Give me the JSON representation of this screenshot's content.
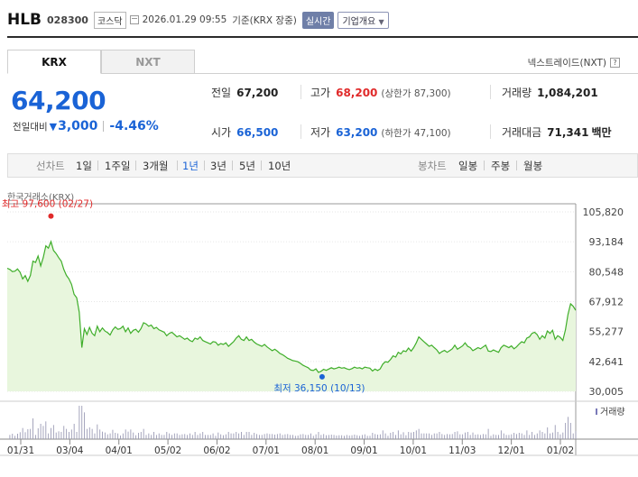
{
  "header": {
    "name": "HLB",
    "code": "028300",
    "market": "코스닥",
    "time": "2026.01.29 09:55",
    "basis": "기준(KRX 장중)",
    "realtime": "실시간",
    "corp_info": "기업개요"
  },
  "tabs": [
    {
      "label": "KRX"
    },
    {
      "label": "NXT"
    }
  ],
  "nxt_link": "넥스트레이드(NXT)",
  "help": "?",
  "price": {
    "current": "64,200",
    "change_label": "전일대비",
    "change": "3,000",
    "change_pct": "-4.46%"
  },
  "quote": {
    "prev_label": "전일",
    "prev": "67,200",
    "high_label": "고가",
    "high": "68,200",
    "upper": "(상한가 87,300)",
    "volume_label": "거래량",
    "volume": "1,084,201",
    "open_label": "시가",
    "open": "66,500",
    "low_label": "저가",
    "low": "63,200",
    "lower": "(하한가 47,100)",
    "amount_label": "거래대금",
    "amount": "71,341",
    "amount_unit": "백만"
  },
  "periods": {
    "line_label": "선차트",
    "items": [
      "1일",
      "1주일",
      "3개월",
      "1년",
      "3년",
      "5년",
      "10년"
    ],
    "selected": "1년",
    "candle_label": "봉차트",
    "candle_items": [
      "일봉",
      "주봉",
      "월봉"
    ]
  },
  "chart_data": {
    "type": "area",
    "source": "한국거래소(KRX)",
    "y_ticks": [
      "105,820",
      "93,184",
      "80,548",
      "67,912",
      "55,277",
      "42,641",
      "30,005"
    ],
    "ylim": [
      30005,
      105820
    ],
    "x_ticks": [
      "01/31",
      "03/04",
      "04/01",
      "05/02",
      "06/02",
      "07/01",
      "08/01",
      "09/01",
      "10/01",
      "11/03",
      "12/01",
      "01/02"
    ],
    "max_label": "최고 97,600 (02/27)",
    "min_label": "최저 36,150 (10/13)",
    "volume_label": "거래량",
    "colors": {
      "line": "#3fae2a",
      "fill": "#e8f6dd",
      "max": "#e02a2a",
      "min": "#1a63d6",
      "volume": "#9b9bb5"
    },
    "series": [
      {
        "values": [
          82000,
          81500,
          80600,
          80800,
          81700,
          80300,
          77500,
          78900,
          76500,
          79000,
          85000,
          84500,
          87200,
          83000,
          86500,
          91500,
          90500,
          93300,
          89500,
          88200,
          86500,
          85000,
          81500,
          79000,
          77500,
          75200,
          71000,
          69500,
          63500,
          48500,
          56500,
          54000,
          57000,
          54500,
          53500,
          57500,
          55200,
          56800,
          55500,
          54800,
          53800,
          56000,
          57200,
          56200,
          56500,
          57500,
          55200,
          56800,
          54500,
          55800,
          56200,
          55000,
          56500,
          59000,
          58500,
          57500,
          58000,
          56500,
          57000,
          56000,
          55500,
          55000,
          53500,
          54500,
          55000,
          54000,
          53000,
          53500,
          52800,
          52000,
          52500,
          51500,
          51000,
          52500,
          52000,
          53000,
          51500,
          51000,
          50500,
          50000,
          51000,
          50800,
          49500,
          50200,
          49800,
          50500,
          49000,
          50000,
          51000,
          52500,
          53500,
          52000,
          51500,
          53000,
          51500,
          52000,
          50800,
          50000,
          49500,
          49000,
          49800,
          48800,
          48000,
          47200,
          47800,
          47000,
          46000,
          45500,
          44800,
          44000,
          43500,
          43000,
          42800,
          42500,
          41800,
          41000,
          40500,
          40000,
          39000,
          38800,
          39500,
          38000,
          38500,
          39300,
          38900,
          39400,
          40000,
          39500,
          39800,
          40200,
          39800,
          40000,
          39500,
          39200,
          39600,
          40200,
          39800,
          40000,
          39500,
          40200,
          40000,
          39800,
          38600,
          39400,
          38800,
          39500,
          41500,
          42500,
          42300,
          43500,
          45000,
          44500,
          46500,
          45800,
          47200,
          46800,
          48300,
          47000,
          48500,
          50500,
          53000,
          52000,
          51000,
          50000,
          49000,
          49500,
          48500,
          47500,
          46000,
          46800,
          47300,
          46500,
          47200,
          48000,
          49500,
          47800,
          48500,
          49200,
          50500,
          49000,
          48500,
          47200,
          47800,
          48500,
          48000,
          48800,
          49500,
          47000,
          46800,
          47500,
          47000,
          46500,
          48500,
          49500,
          49000,
          48500,
          49200,
          48000,
          48800,
          50000,
          51000,
          50500,
          52500,
          53000,
          54500,
          55000,
          54000,
          52000,
          53500,
          52500,
          55500,
          54500,
          55800,
          52000,
          53500,
          52800,
          51500,
          56000,
          62500,
          67000,
          66000,
          64200
        ]
      }
    ]
  }
}
